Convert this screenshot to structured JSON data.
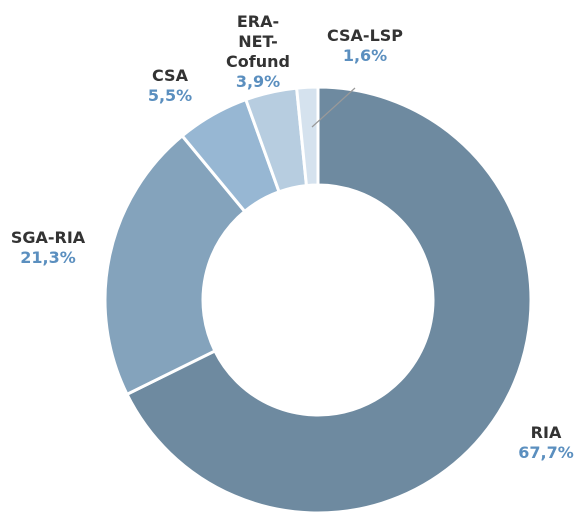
{
  "chart_data": {
    "type": "donut",
    "categories": [
      "RIA",
      "SGA-RIA",
      "CSA",
      "ERA-NET-Cofund",
      "CSA-LSP"
    ],
    "values": [
      67.7,
      21.3,
      5.5,
      3.9,
      1.6
    ],
    "value_labels": [
      "67,7%",
      "21,3%",
      "5,5%",
      "3,9%",
      "1,6%"
    ],
    "colors": [
      "#6e8aa0",
      "#84a3bc",
      "#97b7d3",
      "#b7cde0",
      "#d5e2ee"
    ]
  }
}
